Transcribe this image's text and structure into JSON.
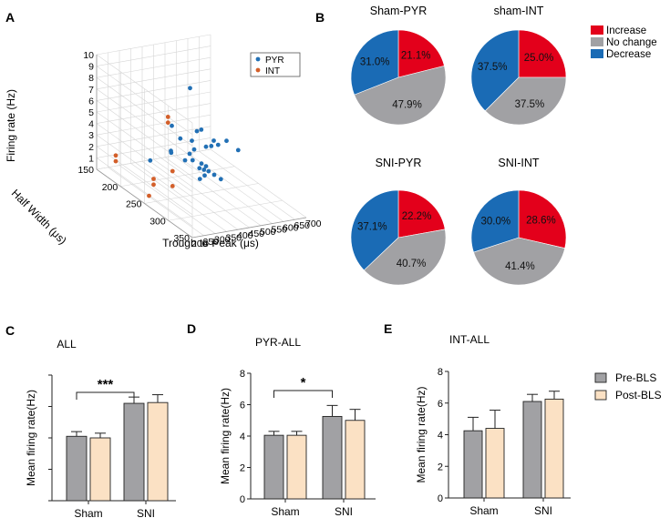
{
  "panels": {
    "A": {
      "letter": "A",
      "z_label": "Firing rate (Hz)",
      "y_label": "Half Width (μs)",
      "x_label": "Trough to Peak (μs)",
      "z_ticks": [
        "1",
        "2",
        "3",
        "4",
        "5",
        "6",
        "7",
        "8",
        "9",
        "10"
      ],
      "y_ticks": [
        "150",
        "200",
        "250",
        "300",
        "350"
      ],
      "x_ticks": [
        "200",
        "250",
        "300",
        "350",
        "400",
        "450",
        "500",
        "550",
        "600",
        "650",
        "700"
      ],
      "legend": [
        "PYR",
        "INT"
      ]
    },
    "B": {
      "letter": "B"
    },
    "C": {
      "letter": "C"
    },
    "D": {
      "letter": "D"
    },
    "E": {
      "letter": "E"
    }
  },
  "colors": {
    "pyr": "#2270b5",
    "int": "#d35f2a",
    "increase": "#e3001b",
    "nochange": "#a1a1a4",
    "decrease": "#1a6bb5",
    "pre": "#a1a1a4",
    "post": "#fbe1c4"
  },
  "chart_data": [
    {
      "id": "A",
      "type": "scatter",
      "title": "",
      "xlabel": "Trough to Peak (μs)",
      "ylabel": "Half Width (μs)",
      "zlabel": "Firing rate (Hz)",
      "xlim": [
        200,
        700
      ],
      "ylim": [
        150,
        350
      ],
      "zlim": [
        1,
        10
      ],
      "series": [
        {
          "name": "PYR",
          "points": [
            [
              380,
              360,
              7.3
            ],
            [
              505,
              200,
              7.5
            ],
            [
              330,
              200,
              1.8
            ],
            [
              420,
              290,
              5.9
            ],
            [
              430,
              280,
              5.1
            ],
            [
              460,
              280,
              5.1
            ],
            [
              470,
              240,
              5.2
            ],
            [
              430,
              250,
              5.5
            ],
            [
              425,
              200,
              4.5
            ],
            [
              420,
              220,
              4.0
            ],
            [
              450,
              230,
              4.0
            ],
            [
              470,
              250,
              4.0
            ],
            [
              390,
              260,
              3.4
            ],
            [
              380,
              220,
              2.9
            ],
            [
              380,
              280,
              2.4
            ],
            [
              400,
              210,
              2.7
            ],
            [
              420,
              230,
              2.4
            ],
            [
              440,
              230,
              2.9
            ],
            [
              460,
              230,
              3.2
            ],
            [
              430,
              300,
              2.8
            ],
            [
              450,
              250,
              2.6
            ],
            [
              470,
              250,
              2.3
            ],
            [
              420,
              260,
              2.6
            ],
            [
              440,
              260,
              2.4
            ],
            [
              460,
              260,
              2.2
            ],
            [
              380,
              290,
              3.0
            ],
            [
              560,
              250,
              4.2
            ],
            [
              485,
              260,
              1.8
            ]
          ]
        },
        {
          "name": "INT",
          "points": [
            [
              240,
              280,
              8.3
            ],
            [
              240,
              280,
              7.8
            ],
            [
              200,
              190,
              2.4
            ],
            [
              200,
              190,
              1.9
            ],
            [
              240,
              250,
              1.5
            ],
            [
              240,
              250,
              2.0
            ],
            [
              260,
              280,
              3.5
            ],
            [
              260,
              280,
              2.2
            ],
            [
              220,
              250,
              0.6
            ]
          ]
        }
      ]
    },
    {
      "id": "B",
      "type": "pie",
      "legend": [
        "Increase",
        "No change",
        "Decrease"
      ],
      "pies": [
        {
          "title": "Sham-PYR",
          "slices": [
            {
              "label": "Increase",
              "value": 21.1,
              "text": "21.1%"
            },
            {
              "label": "No change",
              "value": 47.9,
              "text": "47.9%"
            },
            {
              "label": "Decrease",
              "value": 31.0,
              "text": "31.0%"
            }
          ]
        },
        {
          "title": "sham-INT",
          "slices": [
            {
              "label": "Increase",
              "value": 25.0,
              "text": "25.0%"
            },
            {
              "label": "No change",
              "value": 37.5,
              "text": "37.5%"
            },
            {
              "label": "Decrease",
              "value": 37.5,
              "text": "37.5%"
            }
          ]
        },
        {
          "title": "SNI-PYR",
          "slices": [
            {
              "label": "Increase",
              "value": 22.2,
              "text": "22.2%"
            },
            {
              "label": "No change",
              "value": 40.7,
              "text": "40.7%"
            },
            {
              "label": "Decrease",
              "value": 37.1,
              "text": "37.1%"
            }
          ]
        },
        {
          "title": "SNI-INT",
          "slices": [
            {
              "label": "Increase",
              "value": 28.6,
              "text": "28.6%"
            },
            {
              "label": "No change",
              "value": 41.4,
              "text": "41.4%"
            },
            {
              "label": "Decrease",
              "value": 30.0,
              "text": "30.0%"
            }
          ]
        }
      ]
    },
    {
      "id": "C",
      "type": "bar",
      "title": "ALL",
      "ylabel": "Mean firing rate(Hz)",
      "categories": [
        "Sham",
        "SNI"
      ],
      "ylim": [
        0,
        8
      ],
      "yticks": [],
      "series": [
        {
          "name": "Pre-BLS",
          "values": [
            4.1,
            6.2
          ],
          "errors": [
            0.3,
            0.4
          ]
        },
        {
          "name": "Post-BLS",
          "values": [
            4.0,
            6.25
          ],
          "errors": [
            0.3,
            0.5
          ]
        }
      ],
      "significance": [
        {
          "text": "***",
          "from": 0,
          "to": 1,
          "level": 6.9
        }
      ]
    },
    {
      "id": "D",
      "type": "bar",
      "title": "PYR-ALL",
      "ylabel": "Mean firing rate(Hz)",
      "categories": [
        "Sham",
        "SNI"
      ],
      "ylim": [
        0,
        8
      ],
      "yticks": [
        "0",
        "2",
        "4",
        "6",
        "8"
      ],
      "series": [
        {
          "name": "Pre-BLS",
          "values": [
            4.05,
            5.25
          ],
          "errors": [
            0.25,
            0.7
          ]
        },
        {
          "name": "Post-BLS",
          "values": [
            4.05,
            5.0
          ],
          "errors": [
            0.25,
            0.7
          ]
        }
      ],
      "significance": [
        {
          "text": "*",
          "from": 0,
          "to": 1,
          "level": 6.9
        }
      ]
    },
    {
      "id": "E",
      "type": "bar",
      "title": "INT-ALL",
      "ylabel": "Mean firing rate(Hz)",
      "categories": [
        "Sham",
        "SNI"
      ],
      "ylim": [
        0,
        8
      ],
      "yticks": [
        "0",
        "2",
        "4",
        "6",
        "8"
      ],
      "series": [
        {
          "name": "Pre-BLS",
          "values": [
            4.25,
            6.1
          ],
          "errors": [
            0.85,
            0.45
          ]
        },
        {
          "name": "Post-BLS",
          "values": [
            4.4,
            6.25
          ],
          "errors": [
            1.15,
            0.5
          ]
        }
      ],
      "significance": [],
      "legend": [
        "Pre-BLS",
        "Post-BLS"
      ]
    }
  ]
}
